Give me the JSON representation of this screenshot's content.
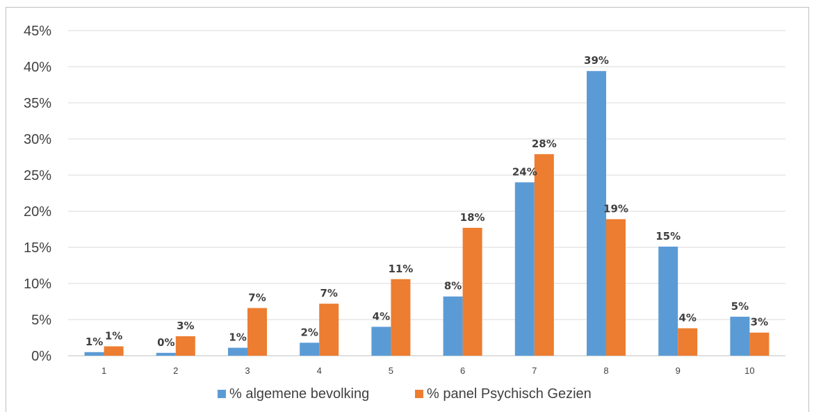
{
  "chart_data": {
    "type": "bar",
    "title": "",
    "xlabel": "",
    "ylabel": "",
    "categories": [
      "1",
      "2",
      "3",
      "4",
      "5",
      "6",
      "7",
      "8",
      "9",
      "10"
    ],
    "series": [
      {
        "name": "% algemene bevolking",
        "color": "#5b9bd5",
        "values": [
          0.5,
          0.4,
          1.1,
          1.8,
          4.0,
          8.2,
          24.0,
          39.4,
          15.1,
          5.4
        ],
        "labels": [
          "1%",
          "0%",
          "1%",
          "2%",
          "4%",
          "8%",
          "24%",
          "39%",
          "15%",
          "5%"
        ]
      },
      {
        "name": "% panel Psychisch Gezien",
        "color": "#ed7d31",
        "values": [
          1.3,
          2.7,
          6.6,
          7.2,
          10.6,
          17.7,
          27.9,
          18.9,
          3.8,
          3.2
        ],
        "labels": [
          "1%",
          "3%",
          "7%",
          "7%",
          "11%",
          "18%",
          "28%",
          "19%",
          "4%",
          "3%"
        ]
      }
    ],
    "ylim": [
      0,
      45
    ],
    "yticks": [
      0,
      5,
      10,
      15,
      20,
      25,
      30,
      35,
      40,
      45
    ],
    "ytick_labels": [
      "0%",
      "5%",
      "10%",
      "15%",
      "20%",
      "25%",
      "30%",
      "35%",
      "40%",
      "45%"
    ],
    "grid": true,
    "legend_position": "bottom"
  },
  "colors": {
    "grid": "#d9d9d9",
    "axis": "#bfbfbf",
    "text": "#404040"
  }
}
